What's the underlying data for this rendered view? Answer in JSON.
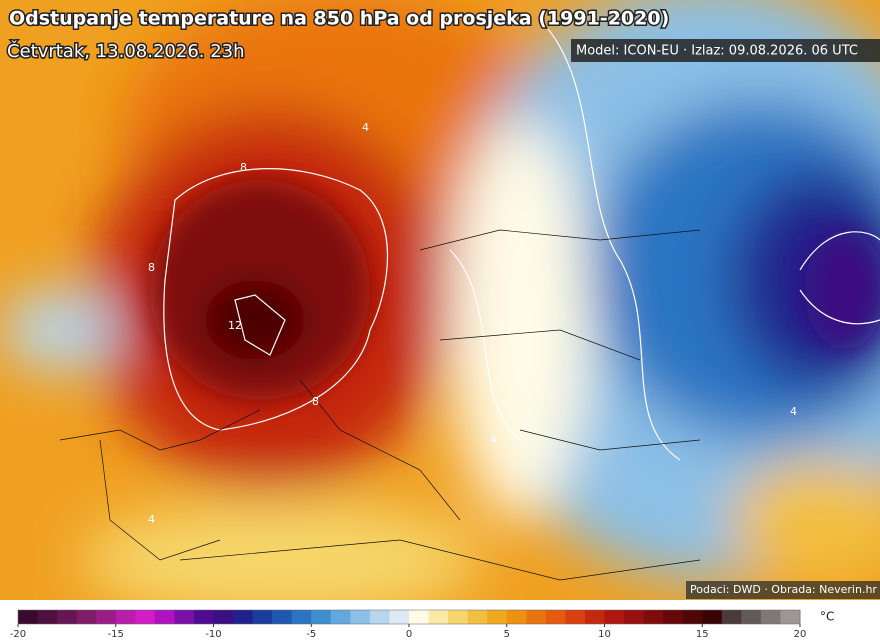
{
  "header": {
    "title": "Odstupanje temperature na 850 hPa od prosjeka (1991-2020)",
    "subtitle": "Četvrtak, 13.08.2026. 23h",
    "model": "Model: ICON-EU · Izlaz: 09.08.2026. 06 UTC"
  },
  "credits": "Podaci: DWD · Obrada: Neverin.hr",
  "contour_labels": [
    8,
    12,
    8,
    4,
    4,
    4,
    8,
    4
  ],
  "colorbar": {
    "range": [
      -20,
      20
    ],
    "ticks": [
      -20,
      -15,
      -10,
      -5,
      0,
      5,
      10,
      15,
      20
    ],
    "unit": "°C",
    "colors": [
      "#3a0a2e",
      "#50103f",
      "#661652",
      "#7e1c68",
      "#9a1c86",
      "#b81fa8",
      "#d21cc4",
      "#b012c0",
      "#7a10a8",
      "#4e0c90",
      "#3a1080",
      "#22208a",
      "#1c3c9c",
      "#1e58b0",
      "#2c74c2",
      "#3f8ed0",
      "#63a8dc",
      "#8cc0e6",
      "#b6d6ee",
      "#dde9f4",
      "#fffbe6",
      "#fbeaa6",
      "#f6d66a",
      "#f2c040",
      "#f0a81c",
      "#ee9010",
      "#ea7410",
      "#e45a10",
      "#d84010",
      "#c42810",
      "#ae1810",
      "#961010",
      "#7e0c0c",
      "#660808",
      "#4e0606",
      "#3a0404",
      "#4a3a3a",
      "#645a5a",
      "#807878",
      "#9c9696"
    ]
  }
}
